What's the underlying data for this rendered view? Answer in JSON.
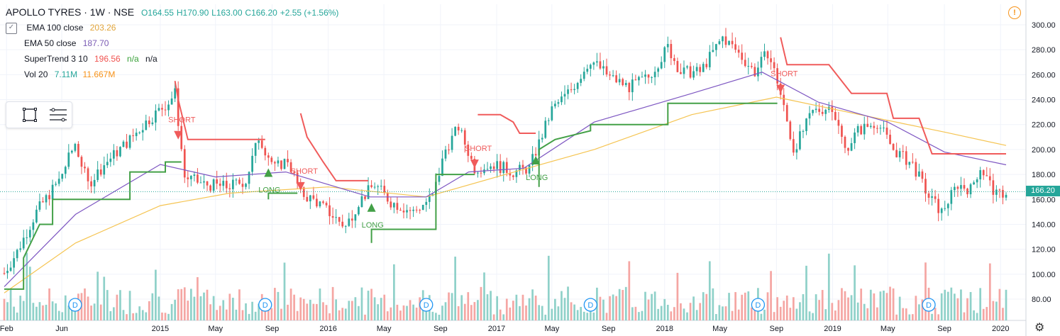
{
  "header": {
    "symbol": "APOLLO TYRES",
    "interval": "1W",
    "exchange": "NSE",
    "open": "O164.55",
    "high": "H170.90",
    "low": "L163.00",
    "close": "C166.20",
    "change": "+2.55 (+1.56%)"
  },
  "indicators": [
    {
      "label": "EMA 100 close",
      "values": [
        "203.26"
      ],
      "colors": [
        "#e0a43a"
      ]
    },
    {
      "label": "EMA 50 close",
      "values": [
        "187.70"
      ],
      "colors": [
        "#7b5cb5"
      ]
    },
    {
      "label": "SuperTrend 3 10",
      "values": [
        "196.56",
        "n/a",
        "n/a"
      ],
      "colors": [
        "#f05350",
        "#38a138",
        "#131722"
      ]
    },
    {
      "label": "Vol 20",
      "values": [
        "7.11M",
        "11.667M"
      ],
      "colors": [
        "#26a69a",
        "#f7931a"
      ]
    }
  ],
  "last_price": "166.20",
  "colors": {
    "up": "#26a69a",
    "down": "#ef5350",
    "ema100": "#f5c451",
    "ema50": "#7e57c2",
    "st_up": "#43a047",
    "st_down": "#f05b5b",
    "vol_up": "#8fd1c9",
    "vol_down": "#f5a6a3"
  },
  "icons": [
    "warning-icon",
    "rectangle-tool-icon",
    "lines-tool-icon",
    "gear-icon",
    "dividend-icon"
  ],
  "chart_data": {
    "type": "candlestick",
    "interval": "weekly",
    "ylim": [
      68,
      308
    ],
    "y_ticks": [
      "80.00",
      "100.00",
      "120.00",
      "140.00",
      "160.00",
      "180.00",
      "200.00",
      "220.00",
      "240.00",
      "260.00",
      "280.00",
      "300.00"
    ],
    "x_ticks": [
      "Feb",
      "Jun",
      "2015",
      "May",
      "Sep",
      "2016",
      "May",
      "Sep",
      "2017",
      "May",
      "Sep",
      "2018",
      "May",
      "Sep",
      "2019",
      "May",
      "Sep",
      "2020"
    ],
    "price_anchors": [
      [
        "2014-01-27",
        101
      ],
      [
        "2014-02-24",
        118
      ],
      [
        "2014-04-07",
        150
      ],
      [
        "2014-05-26",
        175
      ],
      [
        "2014-06-30",
        205
      ],
      [
        "2014-07-28",
        172
      ],
      [
        "2014-09-01",
        188
      ],
      [
        "2014-10-27",
        208
      ],
      [
        "2014-12-01",
        222
      ],
      [
        "2015-01-19",
        238
      ],
      [
        "2015-02-02",
        245
      ],
      [
        "2015-02-23",
        178
      ],
      [
        "2015-04-06",
        172
      ],
      [
        "2015-05-25",
        170
      ],
      [
        "2015-07-06",
        175
      ],
      [
        "2015-08-03",
        210
      ],
      [
        "2015-09-07",
        185
      ],
      [
        "2015-10-05",
        192
      ],
      [
        "2015-11-02",
        165
      ],
      [
        "2015-12-07",
        158
      ],
      [
        "2016-02-08",
        138
      ],
      [
        "2016-03-07",
        158
      ],
      [
        "2016-04-11",
        172
      ],
      [
        "2016-05-16",
        158
      ],
      [
        "2016-07-04",
        150
      ],
      [
        "2016-08-15",
        162
      ],
      [
        "2016-09-12",
        200
      ],
      [
        "2016-10-10",
        218
      ],
      [
        "2016-11-14",
        185
      ],
      [
        "2016-12-26",
        188
      ],
      [
        "2017-02-06",
        182
      ],
      [
        "2017-03-13",
        185
      ],
      [
        "2017-05-01",
        232
      ],
      [
        "2017-06-12",
        248
      ],
      [
        "2017-07-24",
        272
      ],
      [
        "2017-09-04",
        258
      ],
      [
        "2017-10-16",
        250
      ],
      [
        "2017-11-27",
        258
      ],
      [
        "2018-01-08",
        282
      ],
      [
        "2018-02-05",
        262
      ],
      [
        "2018-03-19",
        262
      ],
      [
        "2018-05-07",
        290
      ],
      [
        "2018-06-04",
        280
      ],
      [
        "2018-07-16",
        262
      ],
      [
        "2018-08-13",
        278
      ],
      [
        "2018-09-03",
        255
      ],
      [
        "2018-10-08",
        200
      ],
      [
        "2018-11-19",
        230
      ],
      [
        "2018-12-31",
        235
      ],
      [
        "2019-01-28",
        200
      ],
      [
        "2019-02-25",
        215
      ],
      [
        "2019-04-08",
        222
      ],
      [
        "2019-05-13",
        200
      ],
      [
        "2019-06-24",
        188
      ],
      [
        "2019-07-29",
        162
      ],
      [
        "2019-08-26",
        150
      ],
      [
        "2019-09-30",
        172
      ],
      [
        "2019-10-28",
        168
      ],
      [
        "2019-11-18",
        186
      ],
      [
        "2019-12-23",
        163
      ],
      [
        "2020-01-13",
        166
      ]
    ],
    "ema100": [
      [
        "2014-01-27",
        85
      ],
      [
        "2014-07-01",
        125
      ],
      [
        "2015-01-01",
        155
      ],
      [
        "2015-06-01",
        165
      ],
      [
        "2016-01-01",
        170
      ],
      [
        "2016-08-01",
        162
      ],
      [
        "2017-01-01",
        178
      ],
      [
        "2017-08-01",
        200
      ],
      [
        "2018-03-01",
        228
      ],
      [
        "2018-09-01",
        242
      ],
      [
        "2019-03-01",
        228
      ],
      [
        "2019-09-01",
        214
      ],
      [
        "2020-01-13",
        203.26
      ]
    ],
    "ema50": [
      [
        "2014-01-27",
        90
      ],
      [
        "2014-07-01",
        148
      ],
      [
        "2015-01-01",
        188
      ],
      [
        "2015-05-01",
        178
      ],
      [
        "2015-10-01",
        182
      ],
      [
        "2016-04-01",
        162
      ],
      [
        "2016-08-01",
        162
      ],
      [
        "2016-11-01",
        182
      ],
      [
        "2017-03-01",
        185
      ],
      [
        "2017-08-01",
        222
      ],
      [
        "2018-03-01",
        245
      ],
      [
        "2018-08-01",
        262
      ],
      [
        "2018-12-01",
        238
      ],
      [
        "2019-05-01",
        222
      ],
      [
        "2019-09-01",
        198
      ],
      [
        "2020-01-13",
        187.7
      ]
    ],
    "supertrend_long": [
      [
        "2014-01-27",
        88
      ],
      [
        "2014-03-10",
        88
      ],
      [
        "2014-03-10",
        113
      ],
      [
        "2014-04-14",
        140
      ],
      [
        "2014-05-12",
        140
      ],
      [
        "2014-05-12",
        160
      ],
      [
        "2014-10-27",
        160
      ],
      [
        "2014-10-27",
        182
      ],
      [
        "2015-01-12",
        182
      ],
      [
        "2015-01-12",
        190
      ],
      [
        "2015-02-16",
        190
      ]
    ],
    "supertrend_long2": [
      [
        "2015-08-24",
        160
      ],
      [
        "2015-08-24",
        165
      ],
      [
        "2015-10-26",
        165
      ]
    ],
    "supertrend_long3": [
      [
        "2016-04-04",
        125
      ],
      [
        "2016-04-04",
        136
      ],
      [
        "2016-08-22",
        136
      ],
      [
        "2016-08-22",
        180
      ],
      [
        "2016-11-14",
        180
      ]
    ],
    "supertrend_long4": [
      [
        "2017-04-03",
        170
      ],
      [
        "2017-04-03",
        200
      ],
      [
        "2017-05-08",
        208
      ],
      [
        "2017-07-24",
        215
      ],
      [
        "2017-07-24",
        220
      ],
      [
        "2018-01-08",
        220
      ],
      [
        "2018-01-08",
        237
      ],
      [
        "2018-09-03",
        237
      ]
    ],
    "supertrend_short": [
      [
        "2015-02-02",
        255
      ],
      [
        "2015-02-09",
        240
      ],
      [
        "2015-03-02",
        208
      ],
      [
        "2015-08-17",
        208
      ]
    ],
    "supertrend_short2": [
      [
        "2015-11-02",
        229
      ],
      [
        "2015-11-16",
        210
      ],
      [
        "2015-12-21",
        190
      ],
      [
        "2016-01-18",
        175
      ],
      [
        "2016-03-28",
        175
      ]
    ],
    "supertrend_short3": [
      [
        "2016-11-21",
        228
      ],
      [
        "2017-01-09",
        228
      ],
      [
        "2017-02-06",
        222
      ],
      [
        "2017-02-20",
        213
      ],
      [
        "2017-03-27",
        213
      ]
    ],
    "supertrend_short4": [
      [
        "2018-09-10",
        290
      ],
      [
        "2018-09-24",
        268
      ],
      [
        "2018-12-24",
        268
      ],
      [
        "2019-02-11",
        245
      ],
      [
        "2019-04-29",
        245
      ],
      [
        "2019-05-13",
        225
      ],
      [
        "2019-07-08",
        225
      ],
      [
        "2019-08-05",
        196.56
      ],
      [
        "2020-01-13",
        196.56
      ]
    ],
    "signals": [
      {
        "label": "SHORT",
        "date": "2015-02-09",
        "price": 224,
        "dir": "down"
      },
      {
        "label": "LONG",
        "date": "2015-08-24",
        "price": 186,
        "dir": "up"
      },
      {
        "label": "SHORT",
        "date": "2015-11-02",
        "price": 183,
        "dir": "down"
      },
      {
        "label": "LONG",
        "date": "2016-04-04",
        "price": 158,
        "dir": "up"
      },
      {
        "label": "SHORT",
        "date": "2016-11-14",
        "price": 201,
        "dir": "down"
      },
      {
        "label": "LONG",
        "date": "2017-03-27",
        "price": 196,
        "dir": "up"
      },
      {
        "label": "SHORT",
        "date": "2018-09-10",
        "price": 261,
        "dir": "down"
      }
    ],
    "dividends": [
      "2014-06-30",
      "2015-08-17",
      "2016-08-01",
      "2017-07-24",
      "2018-07-23",
      "2019-07-29"
    ],
    "dividend_label": "D"
  }
}
